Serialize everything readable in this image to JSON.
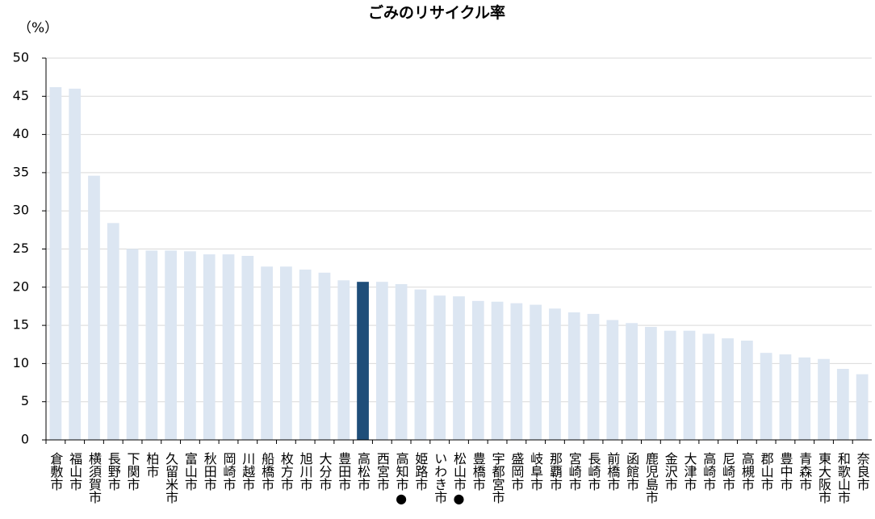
{
  "chart_data": {
    "type": "bar",
    "title": "ごみのリサイクル率",
    "y_label": "（%）",
    "categories": [
      "倉敷市",
      "福山市",
      "横須賀市",
      "長野市",
      "下関市",
      "柏市",
      "久留米市",
      "富山市",
      "秋田市",
      "岡崎市",
      "川越市",
      "船橋市",
      "枚方市",
      "旭川市",
      "大分市",
      "豊田市",
      "高松市",
      "西宮市",
      "高知市●",
      "姫路市",
      "いわき市",
      "松山市●",
      "豊橋市",
      "宇都宮市",
      "盛岡市",
      "岐阜市",
      "那覇市",
      "宮崎市",
      "長崎市",
      "前橋市",
      "函館市",
      "鹿児島市",
      "金沢市",
      "大津市",
      "高崎市",
      "尼崎市",
      "高槻市",
      "郡山市",
      "豊中市",
      "青森市",
      "東大阪市",
      "和歌山市",
      "奈良市"
    ],
    "values": [
      46.2,
      46.0,
      34.6,
      28.4,
      25.0,
      24.8,
      24.8,
      24.7,
      24.3,
      24.3,
      24.1,
      22.7,
      22.7,
      22.3,
      21.9,
      20.9,
      20.7,
      20.7,
      20.4,
      19.7,
      18.9,
      18.8,
      18.2,
      18.1,
      17.9,
      17.7,
      17.2,
      16.7,
      16.5,
      15.7,
      15.3,
      14.8,
      14.3,
      14.3,
      13.9,
      13.3,
      13.0,
      11.4,
      11.2,
      10.8,
      10.6,
      9.3,
      8.6
    ],
    "color": "#dce6f2",
    "highlight_color": "#1f4e79",
    "highlight": "高松市",
    "ylim": [
      0,
      50
    ],
    "yticks": [
      0,
      5,
      10,
      15,
      20,
      25,
      30,
      35,
      40,
      45,
      50
    ],
    "grid": true
  }
}
